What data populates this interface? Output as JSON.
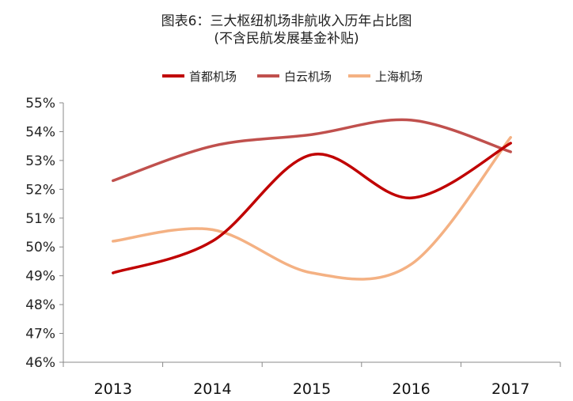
{
  "chart_data": {
    "type": "line",
    "title": "图表6：三大枢纽机场非航收入历年占比图",
    "subtitle": "(不含民航发展基金补贴)",
    "categories": [
      "2013",
      "2014",
      "2015",
      "2016",
      "2017"
    ],
    "y_ticks": [
      "46%",
      "47%",
      "48%",
      "49%",
      "50%",
      "51%",
      "52%",
      "53%",
      "54%",
      "55%"
    ],
    "ylim": [
      46,
      55
    ],
    "legend_position": "top-center",
    "grid": false,
    "series": [
      {
        "name": "首都机场",
        "color": "#c00000",
        "values": [
          49.1,
          50.2,
          53.2,
          51.7,
          53.6
        ]
      },
      {
        "name": "白云机场",
        "color": "#c0504d",
        "values": [
          52.3,
          53.5,
          53.9,
          54.4,
          53.3
        ]
      },
      {
        "name": "上海机场",
        "color": "#f4b183",
        "values": [
          50.2,
          50.6,
          49.1,
          49.4,
          53.8
        ]
      }
    ]
  }
}
